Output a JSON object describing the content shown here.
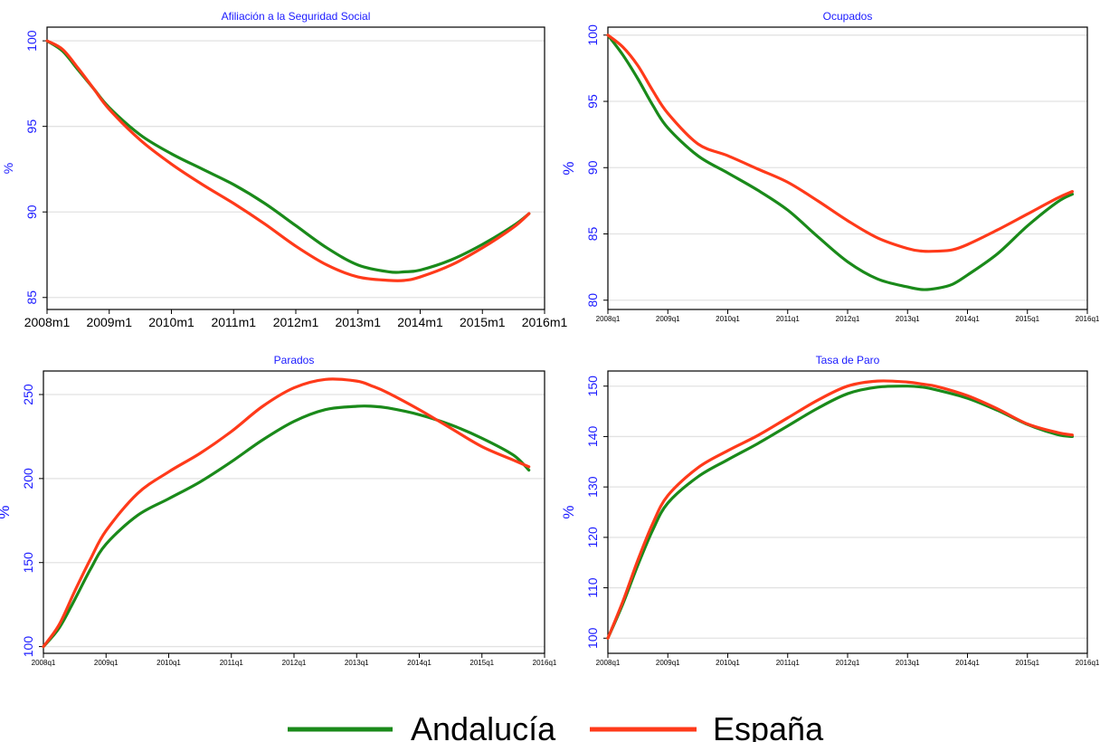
{
  "colors": {
    "andalucia": "#1a8a1a",
    "espana": "#ff3a1a",
    "text_blue": "#1a1aff",
    "grid": "#e2e2e2"
  },
  "legend": {
    "andalucia": "Andalucía",
    "espana": "España"
  },
  "chart_data": [
    {
      "type": "line",
      "title": "Afiliación a la Seguridad Social",
      "ylabel": "%",
      "grid": true,
      "xtick_labels": [
        "2008m1",
        "2009m1",
        "2010m1",
        "2011m1",
        "2012m1",
        "2013m1",
        "2014m1",
        "2015m1",
        "2016m1"
      ],
      "xlim": [
        0,
        8
      ],
      "ylim": [
        84.3,
        100.8
      ],
      "yticks": [
        85,
        90,
        95,
        100
      ],
      "ytick_labels": [
        "85",
        "90",
        "95",
        "100"
      ],
      "series": [
        {
          "name": "Andalucía",
          "x": [
            0,
            0.25,
            0.5,
            0.75,
            1.0,
            1.5,
            2.0,
            2.5,
            3.0,
            3.5,
            4.0,
            4.5,
            5.0,
            5.5,
            5.75,
            6.0,
            6.5,
            7.0,
            7.5,
            7.75
          ],
          "y": [
            100,
            99.4,
            98.3,
            97.2,
            96.1,
            94.5,
            93.4,
            92.5,
            91.6,
            90.5,
            89.2,
            87.9,
            86.9,
            86.5,
            86.5,
            86.6,
            87.2,
            88.1,
            89.2,
            89.9
          ]
        },
        {
          "name": "España",
          "x": [
            0,
            0.25,
            0.5,
            0.75,
            1.0,
            1.5,
            2.0,
            2.5,
            3.0,
            3.5,
            4.0,
            4.5,
            5.0,
            5.5,
            5.75,
            6.0,
            6.5,
            7.0,
            7.5,
            7.75
          ],
          "y": [
            100,
            99.5,
            98.4,
            97.2,
            96.0,
            94.2,
            92.8,
            91.6,
            90.5,
            89.3,
            88.0,
            86.9,
            86.2,
            86.0,
            86.0,
            86.2,
            86.9,
            87.9,
            89.1,
            89.9
          ]
        }
      ]
    },
    {
      "type": "line",
      "title": "Ocupados",
      "ylabel": "%",
      "grid": true,
      "xtick_labels": [
        "2008q1",
        "2009q1",
        "2010q1",
        "2011q1",
        "2012q1",
        "2013q1",
        "2014q1",
        "2015q1",
        "2016q1"
      ],
      "xlim": [
        0,
        8
      ],
      "ylim": [
        79.3,
        100.6
      ],
      "yticks": [
        80,
        85,
        90,
        95,
        100
      ],
      "ytick_labels": [
        "80",
        "85",
        "90",
        "95",
        "100"
      ],
      "series": [
        {
          "name": "Andalucía",
          "x": [
            0,
            0.25,
            0.5,
            0.75,
            1.0,
            1.5,
            2.0,
            2.5,
            3.0,
            3.5,
            4.0,
            4.5,
            5.0,
            5.25,
            5.5,
            5.75,
            6.0,
            6.5,
            7.0,
            7.5,
            7.75
          ],
          "y": [
            100,
            98.5,
            96.7,
            94.7,
            93.0,
            90.9,
            89.6,
            88.3,
            86.8,
            84.8,
            82.9,
            81.6,
            81.0,
            80.8,
            80.9,
            81.2,
            81.9,
            83.5,
            85.6,
            87.4,
            88.0
          ]
        },
        {
          "name": "España",
          "x": [
            0,
            0.25,
            0.5,
            0.75,
            1.0,
            1.5,
            2.0,
            2.5,
            3.0,
            3.5,
            4.0,
            4.5,
            5.0,
            5.25,
            5.5,
            5.75,
            6.0,
            6.5,
            7.0,
            7.5,
            7.75
          ],
          "y": [
            100,
            99.1,
            97.7,
            95.8,
            94.1,
            91.8,
            90.9,
            89.9,
            88.9,
            87.5,
            86.0,
            84.7,
            83.9,
            83.7,
            83.7,
            83.8,
            84.2,
            85.3,
            86.5,
            87.7,
            88.2
          ]
        }
      ]
    },
    {
      "type": "line",
      "title": "Parados",
      "ylabel": "%",
      "grid": true,
      "xtick_labels": [
        "2008q1",
        "2009q1",
        "2010q1",
        "2011q1",
        "2012q1",
        "2013q1",
        "2014q1",
        "2015q1",
        "2016q1"
      ],
      "xlim": [
        0,
        8
      ],
      "ylim": [
        96,
        264
      ],
      "yticks": [
        100,
        150,
        200,
        250
      ],
      "ytick_labels": [
        "100",
        "150",
        "200",
        "250"
      ],
      "series": [
        {
          "name": "Andalucía",
          "x": [
            0,
            0.25,
            0.5,
            0.75,
            1.0,
            1.5,
            2.0,
            2.5,
            3.0,
            3.5,
            4.0,
            4.5,
            5.0,
            5.25,
            5.5,
            6.0,
            6.5,
            7.0,
            7.5,
            7.75
          ],
          "y": [
            100,
            111,
            128,
            146,
            161,
            178,
            188,
            198,
            210,
            223,
            234,
            241,
            243,
            243,
            242,
            238,
            232,
            224,
            214,
            205
          ]
        },
        {
          "name": "España",
          "x": [
            0,
            0.25,
            0.5,
            0.75,
            1.0,
            1.5,
            2.0,
            2.5,
            3.0,
            3.5,
            4.0,
            4.5,
            5.0,
            5.25,
            5.5,
            6.0,
            6.5,
            7.0,
            7.5,
            7.75
          ],
          "y": [
            100,
            113,
            133,
            152,
            169,
            191,
            204,
            215,
            228,
            243,
            254,
            259,
            258,
            255,
            251,
            241,
            230,
            219,
            211,
            207
          ]
        }
      ]
    },
    {
      "type": "line",
      "title": "Tasa de Paro",
      "ylabel": "%",
      "grid": true,
      "xtick_labels": [
        "2008q1",
        "2009q1",
        "2010q1",
        "2011q1",
        "2012q1",
        "2013q1",
        "2014q1",
        "2015q1",
        "2016q1"
      ],
      "xlim": [
        0,
        8
      ],
      "ylim": [
        97,
        153
      ],
      "yticks": [
        100,
        110,
        120,
        130,
        140,
        150
      ],
      "ytick_labels": [
        "100",
        "110",
        "120",
        "130",
        "140",
        "150"
      ],
      "series": [
        {
          "name": "Andalucía",
          "x": [
            0,
            0.25,
            0.5,
            0.75,
            1.0,
            1.5,
            2.0,
            2.5,
            3.0,
            3.5,
            4.0,
            4.5,
            5.0,
            5.25,
            5.5,
            6.0,
            6.5,
            7.0,
            7.5,
            7.75
          ],
          "y": [
            100,
            106.8,
            114.5,
            121.5,
            126.8,
            132.0,
            135.4,
            138.6,
            142.1,
            145.6,
            148.5,
            149.8,
            150.0,
            149.8,
            149.2,
            147.6,
            145.2,
            142.4,
            140.4,
            140.0
          ]
        },
        {
          "name": "España",
          "x": [
            0,
            0.25,
            0.5,
            0.75,
            1.0,
            1.5,
            2.0,
            2.5,
            3.0,
            3.5,
            4.0,
            4.5,
            5.0,
            5.25,
            5.5,
            6.0,
            6.5,
            7.0,
            7.5,
            7.75
          ],
          "y": [
            100,
            107.3,
            115.5,
            122.8,
            128.3,
            133.8,
            137.2,
            140.2,
            143.7,
            147.2,
            150.0,
            151.0,
            150.8,
            150.4,
            149.9,
            148.1,
            145.5,
            142.5,
            140.8,
            140.3
          ]
        }
      ]
    }
  ]
}
